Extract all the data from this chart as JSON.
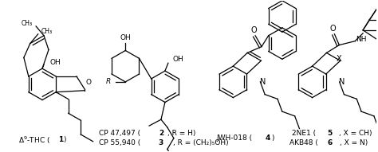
{
  "background_color": "#ffffff",
  "figure_width": 4.74,
  "figure_height": 1.91,
  "dpi": 100,
  "label1": "Δ⁹-THC (",
  "label1b": "1",
  "label1c": ")",
  "label2a": "CP 47,497 (",
  "label2b": "2",
  "label2c": ", R = H)",
  "label3a": "CP 55,940 (",
  "label3b": "3",
  "label3c": ", R = (CH₂)₅OH)",
  "label4a": "JWH-018 (",
  "label4b": "4",
  "label4c": ")",
  "label5a": "2NE1 (",
  "label5b": "5",
  "label5c": ", X = CH)",
  "label6a": "AKB48 (",
  "label6b": "6",
  "label6c": ", X = N)"
}
